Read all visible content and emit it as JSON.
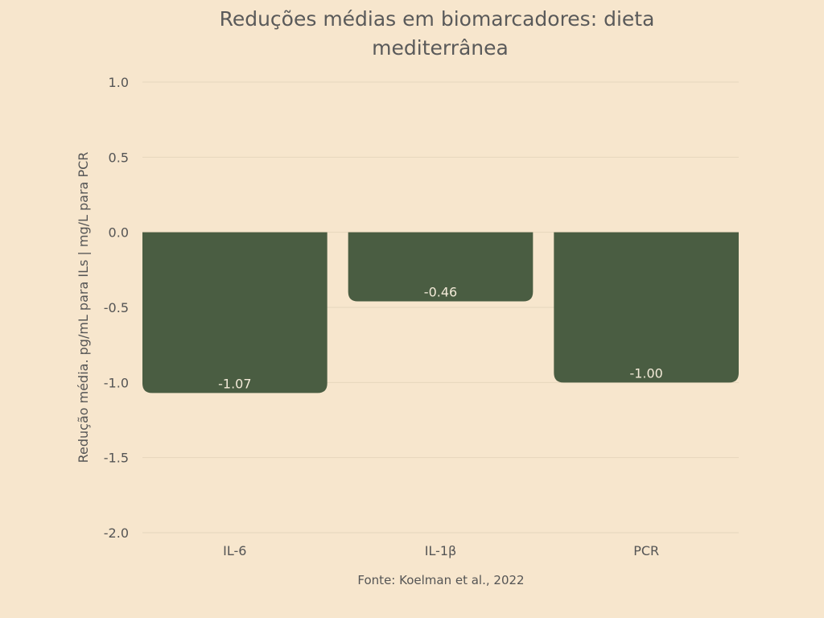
{
  "chart_data": {
    "type": "bar",
    "title": "Reduções médias em biomarcadores: dieta mediterrânea",
    "title_lines": [
      "Reduções médias em biomarcadores: dieta",
      "mediterrânea"
    ],
    "xlabel": "",
    "ylabel": "Redução média. pg/mL para ILs | mg/L para PCR",
    "categories": [
      "IL-6",
      "IL-1β",
      "PCR"
    ],
    "values": [
      -1.07,
      -0.46,
      -1.0
    ],
    "data_labels": [
      "-1.07",
      "-0.46",
      "-1.00"
    ],
    "ylim": [
      -2.0,
      1.0
    ],
    "yticks": [
      "1.0",
      "0.5",
      "0.0",
      "-0.5",
      "-1.0",
      "-1.5",
      "-2.0"
    ],
    "ytick_values": [
      1.0,
      0.5,
      0.0,
      -0.5,
      -1.0,
      -1.5,
      -2.0
    ],
    "grid": true,
    "legend": "none",
    "source": "Fonte: Koelman et al., 2022",
    "colors": {
      "bar": "#4a5d42",
      "background": "#f7e6cd",
      "grid": "#e6d6bd"
    }
  }
}
